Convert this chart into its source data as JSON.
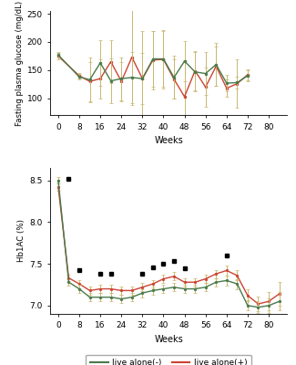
{
  "fpg_weeks": [
    0,
    8,
    12,
    16,
    20,
    24,
    28,
    32,
    36,
    40,
    44,
    48,
    52,
    56,
    60,
    64,
    68,
    72,
    76,
    80,
    84
  ],
  "fpg_neg": [
    177,
    138,
    133,
    163,
    131,
    135,
    137,
    135,
    170,
    170,
    137,
    166,
    147,
    144,
    160,
    127,
    128,
    140,
    null,
    null,
    null
  ],
  "fpg_pos": [
    175,
    140,
    130,
    135,
    165,
    130,
    173,
    135,
    168,
    169,
    134,
    103,
    149,
    120,
    157,
    118,
    126,
    142,
    null,
    null,
    null
  ],
  "fpg_neg_err": [
    5,
    5,
    40,
    40,
    40,
    38,
    45,
    45,
    50,
    50,
    38,
    35,
    35,
    38,
    38,
    15,
    10,
    10,
    null,
    null,
    null
  ],
  "fpg_pos_err": [
    5,
    5,
    35,
    35,
    38,
    35,
    85,
    85,
    52,
    52,
    35,
    65,
    35,
    35,
    35,
    15,
    43,
    10,
    null,
    null,
    null
  ],
  "hba1c_weeks": [
    0,
    4,
    8,
    12,
    16,
    20,
    24,
    28,
    32,
    36,
    40,
    44,
    48,
    52,
    56,
    60,
    64,
    68,
    72,
    76,
    80,
    84
  ],
  "hba1c_neg": [
    8.5,
    7.28,
    7.2,
    7.1,
    7.1,
    7.1,
    7.08,
    7.1,
    7.15,
    7.18,
    7.2,
    7.22,
    7.2,
    7.2,
    7.22,
    7.28,
    7.3,
    7.26,
    7.0,
    6.98,
    7.0,
    7.05
  ],
  "hba1c_pos": [
    8.42,
    7.33,
    7.26,
    7.18,
    7.2,
    7.2,
    7.18,
    7.18,
    7.22,
    7.26,
    7.32,
    7.35,
    7.28,
    7.28,
    7.32,
    7.38,
    7.42,
    7.36,
    7.12,
    7.02,
    7.05,
    7.14
  ],
  "hba1c_neg_err": [
    0.04,
    0.04,
    0.05,
    0.05,
    0.05,
    0.05,
    0.05,
    0.05,
    0.05,
    0.05,
    0.05,
    0.05,
    0.05,
    0.05,
    0.05,
    0.05,
    0.06,
    0.06,
    0.06,
    0.07,
    0.09,
    0.11
  ],
  "hba1c_pos_err": [
    0.04,
    0.04,
    0.05,
    0.05,
    0.05,
    0.05,
    0.05,
    0.05,
    0.05,
    0.05,
    0.05,
    0.05,
    0.05,
    0.05,
    0.05,
    0.05,
    0.06,
    0.06,
    0.07,
    0.09,
    0.11,
    0.14
  ],
  "star_weeks": [
    4,
    8,
    16,
    20,
    32,
    36,
    40,
    44,
    48,
    64
  ],
  "star_y": [
    8.52,
    7.42,
    7.38,
    7.38,
    7.38,
    7.46,
    7.5,
    7.53,
    7.45,
    7.6
  ],
  "color_neg": "#4a7a4a",
  "color_pos": "#cc4433",
  "color_err": "#c8b870",
  "fpg_ylim": [
    70,
    255
  ],
  "fpg_yticks": [
    100,
    150,
    200,
    250
  ],
  "hba1c_ylim": [
    6.9,
    8.65
  ],
  "hba1c_yticks": [
    7.0,
    7.5,
    8.0,
    8.5
  ],
  "xticks": [
    0,
    8,
    16,
    24,
    32,
    40,
    48,
    56,
    64,
    72,
    80
  ],
  "xlabel": "Weeks",
  "fpg_ylabel": "Fasting plasma glucose (mg/dL)",
  "hba1c_ylabel": "Hb1AC (%)",
  "legend_labels": [
    "live alone(-)",
    "live alone(+)"
  ],
  "bg_color": "#ffffff",
  "linewidth": 1.0,
  "err_linewidth": 0.7,
  "err_capsize": 1.5
}
